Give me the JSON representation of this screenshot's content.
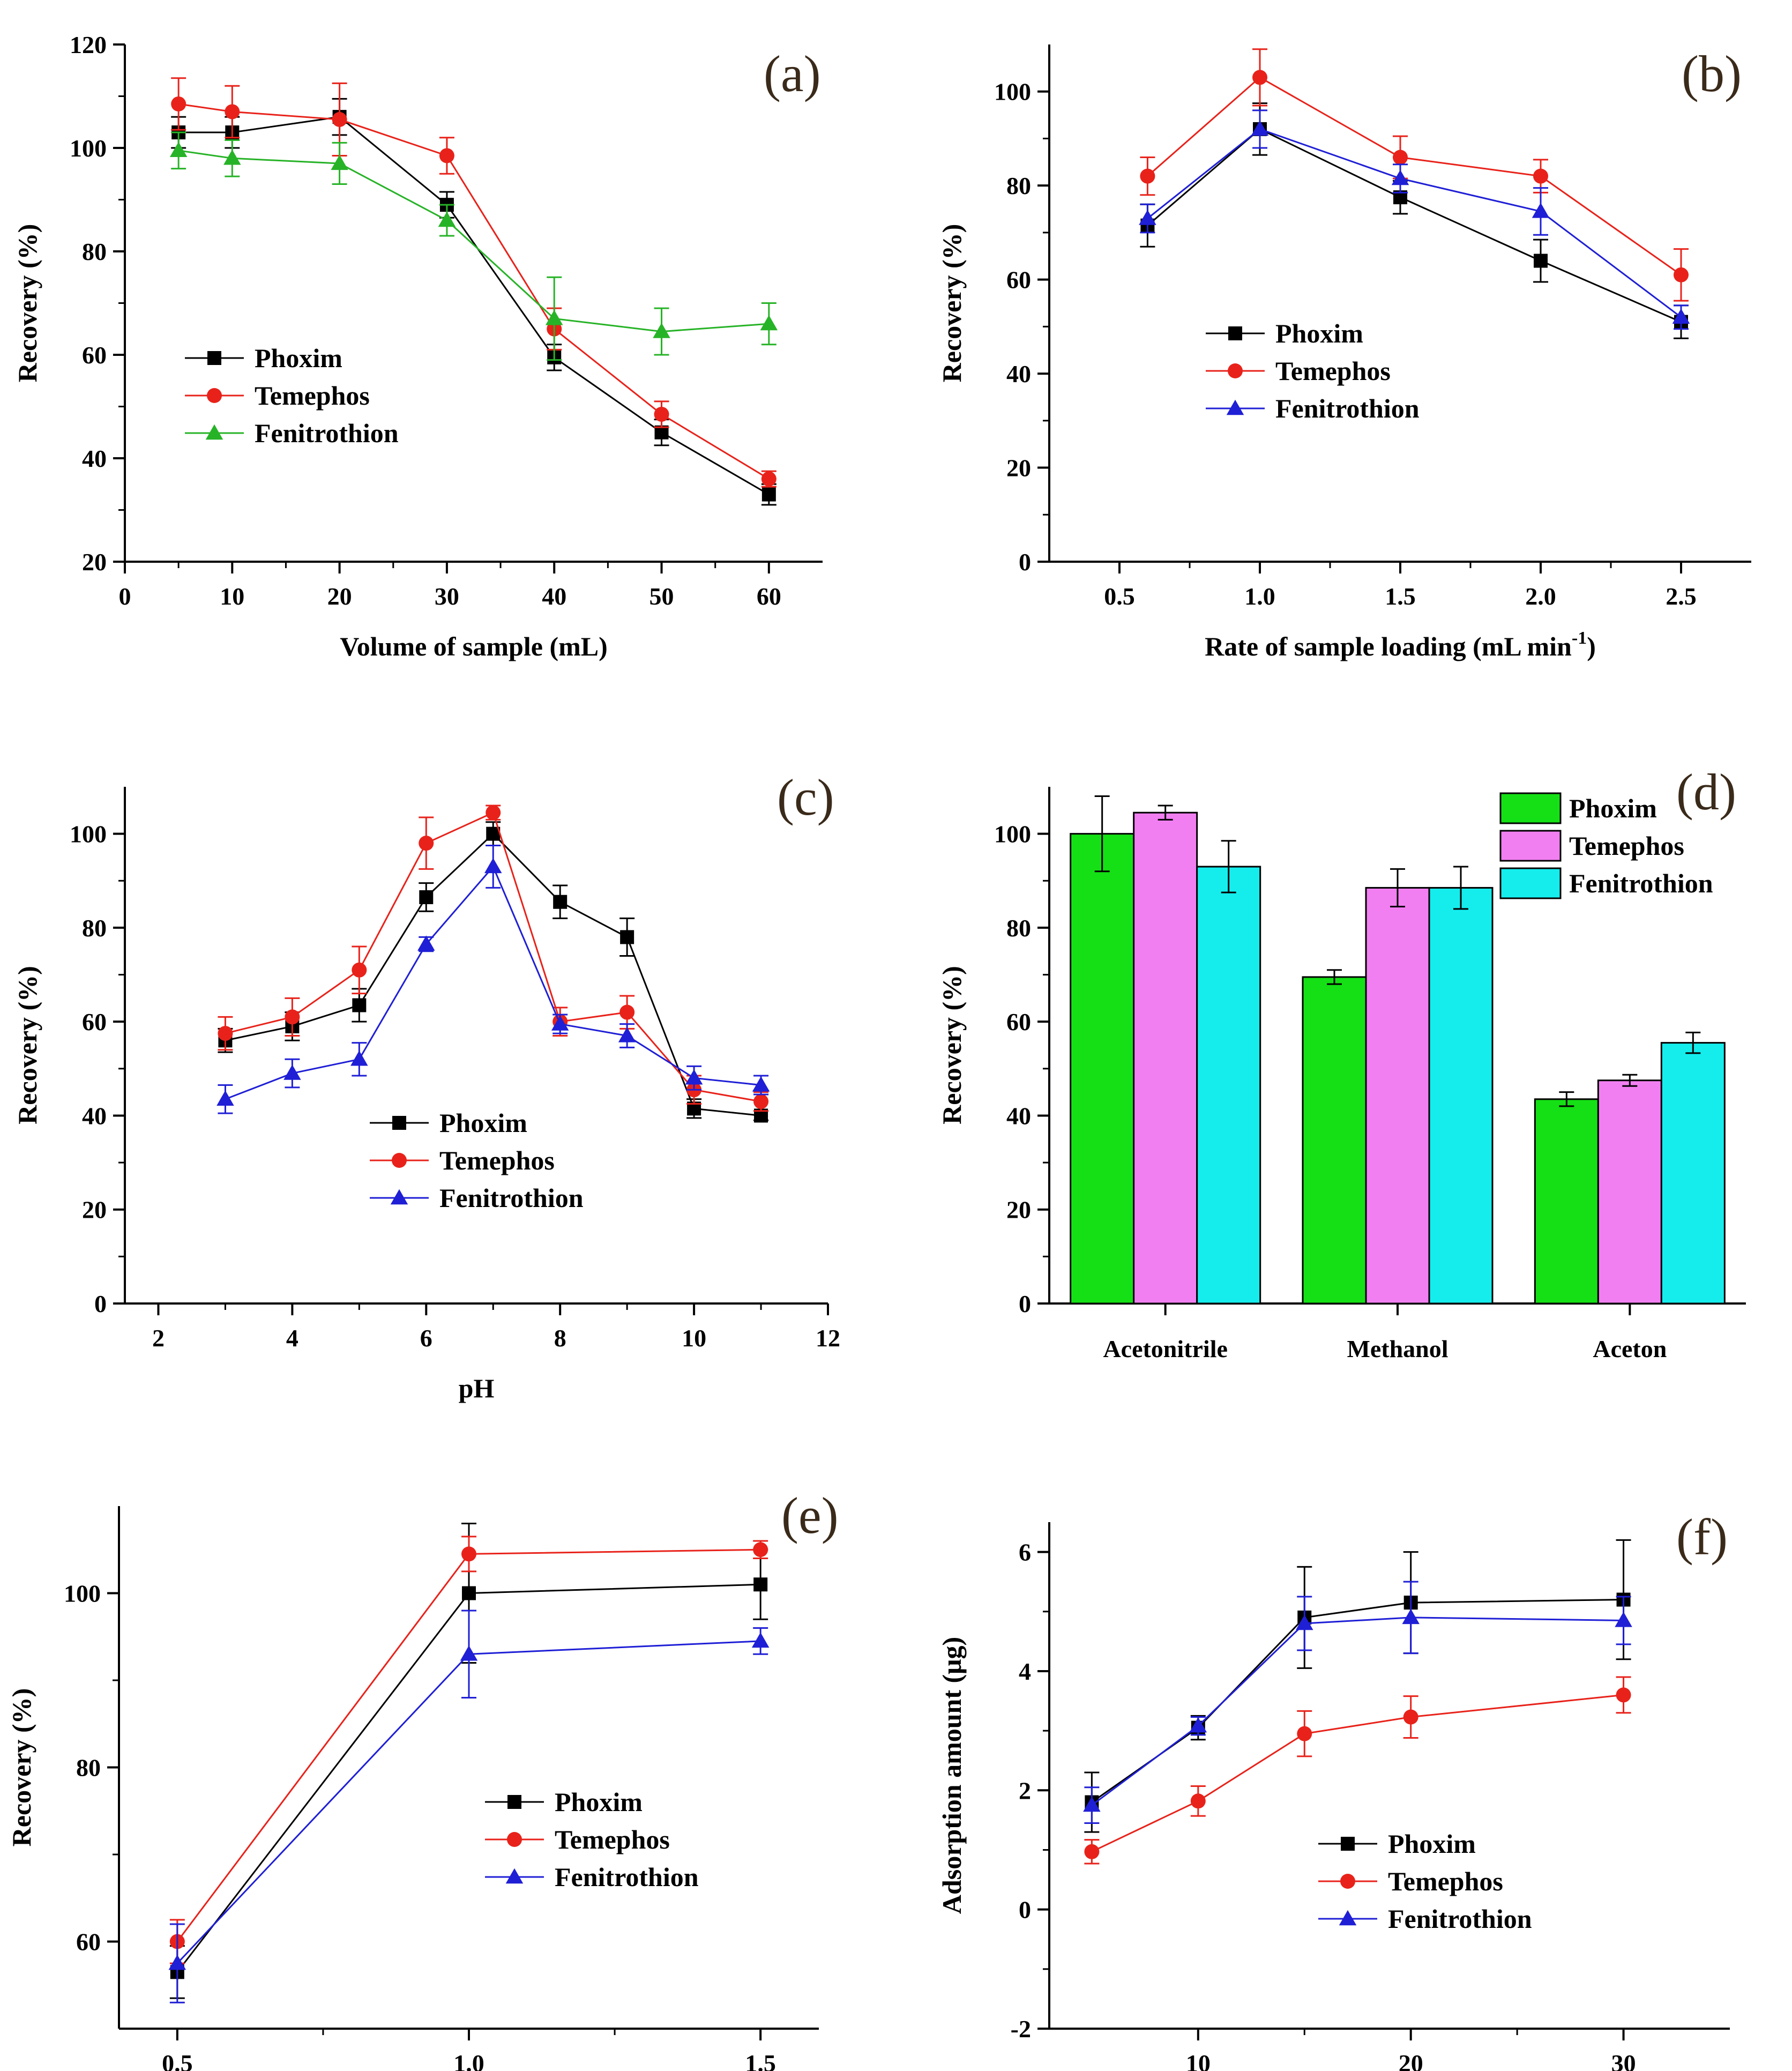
{
  "colors": {
    "phoxim": "#000000",
    "temephos": "#e8221a",
    "fenitrothion_a": "#27b327",
    "fenitrothion": "#1f1fd6",
    "bar_phoxim": "#15e015",
    "bar_temephos": "#f27ff2",
    "bar_fenitrothion": "#15eded"
  },
  "chart_data": [
    {
      "id": "a",
      "panel_label": "(a)",
      "type": "line",
      "xlabel": "Volume of sample (mL)",
      "ylabel": "Recovery (%)",
      "xlim": [
        0,
        65
      ],
      "ylim": [
        20,
        120
      ],
      "xticks": [
        0,
        10,
        20,
        30,
        40,
        50,
        60
      ],
      "yticks": [
        20,
        40,
        60,
        80,
        100,
        120
      ],
      "legend_position": "middle-left",
      "x": [
        5,
        10,
        20,
        30,
        40,
        50,
        60
      ],
      "series": [
        {
          "name": "Phoxim",
          "marker": "square",
          "color_key": "phoxim",
          "values": [
            103,
            103,
            106,
            89,
            59.5,
            45,
            33
          ],
          "errors": [
            3,
            3,
            3.5,
            2.5,
            2.5,
            2.5,
            2
          ]
        },
        {
          "name": "Temephos",
          "marker": "circle",
          "color_key": "temephos",
          "values": [
            108.5,
            107,
            105.5,
            98.5,
            65,
            48.5,
            36
          ],
          "errors": [
            5,
            5,
            7,
            3.5,
            4,
            2.5,
            1.5
          ]
        },
        {
          "name": "Fenitrothion",
          "marker": "triangle",
          "color_key": "fenitrothion_a",
          "values": [
            99.5,
            98,
            97,
            86,
            67,
            64.5,
            66
          ],
          "errors": [
            3.5,
            3.5,
            4,
            3,
            8,
            4.5,
            4
          ]
        }
      ]
    },
    {
      "id": "b",
      "panel_label": "(b)",
      "type": "line",
      "xlabel": "Rate of sample loading (mL min",
      "xlabel_sup": "-1",
      "xlabel_end": ")",
      "ylabel": "Recovery (%)",
      "xlim": [
        0.25,
        2.75
      ],
      "ylim": [
        0,
        110
      ],
      "xticks": [
        0.5,
        1.0,
        1.5,
        2.0,
        2.5
      ],
      "xtick_labels": [
        "0.5",
        "1.0",
        "1.5",
        "2.0",
        "2.5"
      ],
      "yticks": [
        0,
        20,
        40,
        60,
        80,
        100
      ],
      "legend_position": "middle-left",
      "x": [
        0.6,
        1.0,
        1.5,
        2.0,
        2.5
      ],
      "series": [
        {
          "name": "Phoxim",
          "marker": "square",
          "color_key": "phoxim",
          "values": [
            71.5,
            92,
            77.5,
            64,
            51
          ],
          "errors": [
            4.5,
            5.5,
            3.5,
            4.5,
            3.5
          ]
        },
        {
          "name": "Temephos",
          "marker": "circle",
          "color_key": "temephos",
          "values": [
            82,
            103,
            86,
            82,
            61
          ],
          "errors": [
            4,
            6,
            4.5,
            3.5,
            5.5
          ]
        },
        {
          "name": "Fenitrothion",
          "marker": "triangle",
          "color_key": "fenitrothion",
          "values": [
            73,
            92,
            81.5,
            74.5,
            52
          ],
          "errors": [
            3,
            4,
            3,
            5,
            2.5
          ]
        }
      ]
    },
    {
      "id": "c",
      "panel_label": "(c)",
      "type": "line",
      "xlabel": "pH",
      "ylabel": "Recovery (%)",
      "xlim": [
        1.5,
        12
      ],
      "ylim": [
        0,
        110
      ],
      "xticks": [
        2,
        4,
        6,
        8,
        10,
        12
      ],
      "yticks": [
        0,
        20,
        40,
        60,
        80,
        100
      ],
      "legend_position": "bottom-center",
      "x": [
        3,
        4,
        5,
        6,
        7,
        8,
        9,
        10,
        11
      ],
      "series": [
        {
          "name": "Phoxim",
          "marker": "square",
          "color_key": "phoxim",
          "values": [
            56,
            59,
            63.5,
            86.5,
            100,
            85.5,
            78,
            41.5,
            40
          ],
          "errors": [
            2.5,
            3,
            3.5,
            3,
            2.5,
            3.5,
            4,
            2,
            1
          ]
        },
        {
          "name": "Temephos",
          "marker": "circle",
          "color_key": "temephos",
          "values": [
            57.5,
            61,
            71,
            98,
            104.5,
            60,
            62,
            45.5,
            43
          ],
          "errors": [
            3.5,
            4,
            5,
            5.5,
            1.5,
            3,
            3.5,
            3,
            2
          ]
        },
        {
          "name": "Fenitrothion",
          "marker": "triangle",
          "color_key": "fenitrothion",
          "values": [
            43.5,
            49,
            52,
            76.5,
            93,
            59.5,
            57,
            48,
            46.5
          ],
          "errors": [
            3,
            3,
            3.5,
            1.5,
            4.5,
            2,
            2.5,
            2.5,
            2
          ]
        }
      ]
    },
    {
      "id": "d",
      "panel_label": "(d)",
      "type": "bar",
      "xlabel": "",
      "ylabel": "Recovery (%)",
      "ylim": [
        0,
        110
      ],
      "yticks": [
        0,
        20,
        40,
        60,
        80,
        100
      ],
      "legend_position": "top-right",
      "categories": [
        "Acetonitrile",
        "Methanol",
        "Aceton"
      ],
      "series": [
        {
          "name": "Phoxim",
          "color_key": "bar_phoxim",
          "values": [
            100,
            69.5,
            43.5
          ],
          "errors": [
            8,
            1.5,
            1.5
          ]
        },
        {
          "name": "Temephos",
          "color_key": "bar_temephos",
          "values": [
            104.5,
            88.5,
            47.5
          ],
          "errors": [
            1.5,
            4,
            1.2
          ]
        },
        {
          "name": "Fenitrothion",
          "color_key": "bar_fenitrothion",
          "values": [
            93,
            88.5,
            55.5
          ],
          "errors": [
            5.5,
            4.5,
            2.2
          ]
        }
      ]
    },
    {
      "id": "e",
      "panel_label": "(e)",
      "type": "line",
      "xlabel": "",
      "ylabel": "Recovery (%)",
      "xlim": [
        0.4,
        1.6
      ],
      "ylim": [
        50,
        110
      ],
      "xticks": [
        0.5,
        1.0,
        1.5
      ],
      "xtick_labels": [
        "0.5",
        "1.0",
        "1.5"
      ],
      "yticks": [
        60,
        80,
        100
      ],
      "legend_position": "middle-right",
      "x": [
        0.5,
        1.0,
        1.5
      ],
      "series": [
        {
          "name": "Phoxim",
          "marker": "square",
          "color_key": "phoxim",
          "values": [
            56.5,
            100,
            101
          ],
          "errors": [
            3,
            8,
            4
          ]
        },
        {
          "name": "Temephos",
          "marker": "circle",
          "color_key": "temephos",
          "values": [
            60,
            104.5,
            105
          ],
          "errors": [
            2.5,
            2,
            1
          ]
        },
        {
          "name": "Fenitrothion",
          "marker": "triangle",
          "color_key": "fenitrothion",
          "values": [
            57.5,
            93,
            94.5
          ],
          "errors": [
            4.5,
            5,
            1.5
          ]
        }
      ]
    },
    {
      "id": "f",
      "panel_label": "(f)",
      "type": "line",
      "xlabel": "",
      "ylabel": "Adsorption amount (μg)",
      "xlim": [
        3,
        35
      ],
      "ylim": [
        -2,
        6.5
      ],
      "xticks": [
        10,
        20,
        30
      ],
      "yticks": [
        -2,
        0,
        2,
        4,
        6
      ],
      "legend_position": "middle-center",
      "x": [
        5,
        10,
        15,
        20,
        30
      ],
      "series": [
        {
          "name": "Phoxim",
          "marker": "square",
          "color_key": "phoxim",
          "values": [
            1.8,
            3.05,
            4.9,
            5.15,
            5.2
          ],
          "errors": [
            0.5,
            0.2,
            0.85,
            0.85,
            1
          ]
        },
        {
          "name": "Temephos",
          "marker": "circle",
          "color_key": "temephos",
          "values": [
            0.97,
            1.82,
            2.95,
            3.23,
            3.6
          ],
          "errors": [
            0.2,
            0.25,
            0.38,
            0.35,
            0.3
          ]
        },
        {
          "name": "Fenitrothion",
          "marker": "triangle",
          "color_key": "fenitrothion",
          "values": [
            1.75,
            3.08,
            4.8,
            4.9,
            4.85
          ],
          "errors": [
            0.3,
            0.15,
            0.45,
            0.6,
            0.4
          ]
        }
      ]
    }
  ]
}
